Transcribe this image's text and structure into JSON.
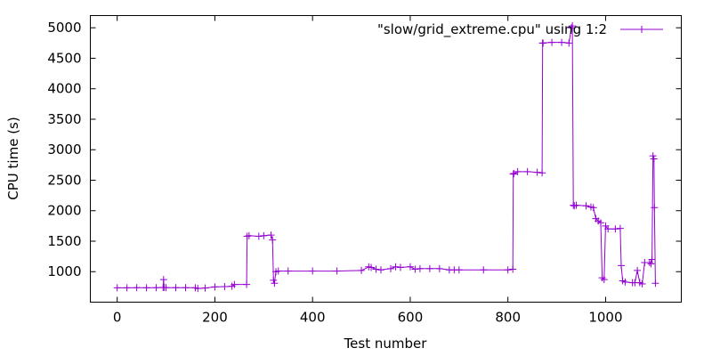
{
  "chart_data": {
    "type": "line",
    "xlabel": "Test number",
    "ylabel": "CPU time (s)",
    "xlim": [
      -55,
      1155
    ],
    "ylim": [
      500,
      5200
    ],
    "xticks": [
      0,
      200,
      400,
      600,
      800,
      1000
    ],
    "yticks": [
      1000,
      1500,
      2000,
      2500,
      3000,
      3500,
      4000,
      4500,
      5000
    ],
    "grid": false,
    "legend_position": "top-right",
    "series": [
      {
        "name": "\"slow/grid_extreme.cpu\" using 1:2",
        "color": "#9400d3",
        "marker": "plus",
        "x": [
          0,
          20,
          40,
          60,
          80,
          94,
          95,
          96,
          100,
          120,
          140,
          160,
          165,
          180,
          200,
          220,
          235,
          240,
          265,
          266,
          270,
          290,
          300,
          315,
          318,
          320,
          322,
          325,
          330,
          350,
          400,
          450,
          500,
          515,
          520,
          530,
          540,
          560,
          570,
          580,
          600,
          610,
          620,
          640,
          660,
          680,
          690,
          700,
          750,
          800,
          810,
          811,
          812,
          820,
          840,
          860,
          870,
          871,
          872,
          890,
          910,
          925,
          930,
          932,
          934,
          936,
          940,
          960,
          970,
          975,
          980,
          985,
          990,
          993,
          997,
          1000,
          1005,
          1020,
          1030,
          1032,
          1035,
          1040,
          1055,
          1060,
          1065,
          1070,
          1075,
          1080,
          1090,
          1093,
          1095,
          1097,
          1099,
          1100,
          1102
        ],
        "y": [
          735,
          735,
          738,
          736,
          737,
          740,
          870,
          740,
          738,
          738,
          737,
          736,
          725,
          732,
          750,
          755,
          760,
          790,
          790,
          1580,
          1590,
          1580,
          1590,
          1600,
          1520,
          860,
          810,
          1000,
          1010,
          1010,
          1010,
          1010,
          1020,
          1080,
          1070,
          1040,
          1030,
          1050,
          1080,
          1070,
          1080,
          1040,
          1050,
          1050,
          1050,
          1030,
          1030,
          1030,
          1030,
          1030,
          1040,
          2600,
          2610,
          2640,
          2640,
          2630,
          2620,
          4750,
          4750,
          4760,
          4760,
          4750,
          5000,
          5030,
          2090,
          2080,
          2090,
          2080,
          2060,
          2050,
          1870,
          1830,
          1800,
          900,
          870,
          1750,
          1700,
          1700,
          1710,
          1100,
          850,
          830,
          820,
          820,
          1020,
          820,
          800,
          1150,
          1150,
          1130,
          1200,
          2900,
          2850,
          2050,
          810
        ]
      }
    ]
  }
}
